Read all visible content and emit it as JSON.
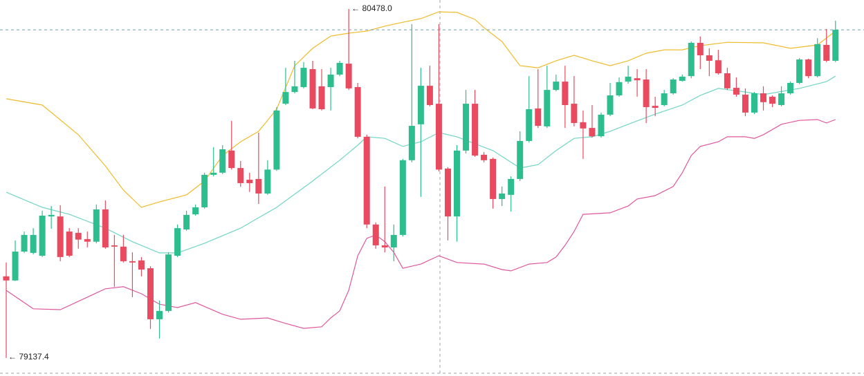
{
  "chart_data": {
    "type": "candlestick",
    "ylim": [
      79068,
      80512.5
    ],
    "up_color": "#2dbd8e",
    "down_color": "#e84a5f",
    "max_label": "← 80478.0",
    "min_label": "← 79137.4",
    "open": [
      79451,
      79435,
      79546,
      79541,
      79530,
      79681,
      79681,
      79623,
      79618,
      79594,
      79584,
      79708,
      79570,
      79565,
      79509,
      79512,
      79482,
      79286,
      79318,
      79530,
      79631,
      79689,
      79716,
      79841,
      79849,
      79934,
      79867,
      79822,
      79825,
      79769,
      79861,
      80114,
      80159,
      80178,
      80247,
      80181,
      80178,
      80226,
      80268,
      80178,
      79987,
      79650,
      79570,
      79562,
      79610,
      79897,
      80035,
      80183,
      80114,
      79865,
      79681,
      79934,
      80114,
      79918,
      79902,
      79748,
      79764,
      79825,
      79971,
      80096,
      80027,
      80167,
      80199,
      80114,
      80043,
      80021,
      79989,
      80072,
      80146,
      80199,
      80212,
      80207,
      80106,
      80109,
      80154,
      80202,
      80220,
      80348,
      80300,
      80281,
      80231,
      80175,
      80149,
      80080,
      80154,
      80141,
      80109,
      80154,
      80194,
      80284,
      80220,
      80340,
      80279
    ],
    "high": [
      79504,
      79589,
      79623,
      79636,
      79703,
      79721,
      79724,
      79636,
      79636,
      79623,
      79727,
      79743,
      79610,
      79610,
      79543,
      79525,
      79490,
      79358,
      79543,
      79650,
      79703,
      79727,
      79849,
      79947,
      79955,
      80048,
      79894,
      79849,
      80003,
      79897,
      80101,
      80252,
      80279,
      80274,
      80279,
      80247,
      80252,
      80279,
      80478.0,
      80194,
      79995,
      79658,
      79796,
      79650,
      79902,
      80420,
      80252,
      80260,
      80420,
      79870,
      79955,
      80167,
      80167,
      79928,
      79907,
      79796,
      79835,
      80008,
      80220,
      80247,
      80260,
      80226,
      80260,
      80220,
      80088,
      80109,
      80080,
      80194,
      80215,
      80260,
      80247,
      80247,
      80141,
      80167,
      80212,
      80226,
      80353,
      80372,
      80327,
      80321,
      80252,
      80215,
      80173,
      80159,
      80181,
      80146,
      80181,
      80199,
      80289,
      80287,
      80366,
      80401,
      80433
    ],
    "low": [
      79137.4,
      79433,
      79541,
      79535,
      79525,
      79634,
      79509,
      79525,
      79557,
      79562,
      79578,
      79557,
      79411,
      79504,
      79371,
      79451,
      79249,
      79212,
      79312,
      79525,
      79626,
      79684,
      79711,
      79835,
      79844,
      79861,
      79795,
      79775,
      79729,
      79764,
      79856,
      80109,
      80154,
      80173,
      80093,
      80088,
      80088,
      80220,
      80167,
      79981,
      79636,
      79557,
      79543,
      79509,
      79604,
      79889,
      79756,
      80104,
      79854,
      79589,
      79584,
      79923,
      79910,
      79889,
      79711,
      79721,
      79700,
      79817,
      79965,
      80021,
      80021,
      80162,
      80021,
      80027,
      79902,
      79984,
      79984,
      80066,
      80141,
      80191,
      80141,
      80040,
      80066,
      80104,
      80149,
      80199,
      80212,
      80247,
      80220,
      80226,
      80167,
      80141,
      80066,
      80074,
      80088,
      80101,
      80104,
      80149,
      80189,
      80212,
      80215,
      80274,
      80274
    ],
    "close": [
      79435,
      79546,
      79610,
      79610,
      79684,
      79687,
      79525,
      79530,
      79592,
      79584,
      79708,
      79562,
      79565,
      79509,
      79504,
      79477,
      79286,
      79318,
      79535,
      79636,
      79687,
      79716,
      79841,
      79849,
      79939,
      79867,
      79809,
      79809,
      79769,
      79861,
      80088,
      80159,
      80181,
      80252,
      80096,
      80093,
      80226,
      80271,
      80173,
      79987,
      79650,
      79570,
      79562,
      79610,
      79897,
      80029,
      80183,
      80109,
      79861,
      79681,
      79934,
      80114,
      79915,
      79897,
      79748,
      79769,
      79825,
      79971,
      80093,
      80029,
      80167,
      80199,
      80109,
      80040,
      80019,
      79989,
      80072,
      80146,
      80197,
      80218,
      80204,
      80101,
      80098,
      80154,
      80207,
      80218,
      80348,
      80300,
      80279,
      80231,
      80173,
      80149,
      80080,
      80154,
      80120,
      80114,
      80154,
      80194,
      80284,
      80220,
      80343,
      80279,
      80398
    ],
    "bands": [
      {
        "color": "#f0bb2a",
        "x": [
          0,
          4,
          8,
          11,
          13,
          15,
          17,
          20,
          22,
          24,
          26,
          28,
          30,
          32,
          34,
          36,
          38,
          40,
          42,
          44,
          46,
          48,
          50,
          52,
          53,
          55,
          57,
          59,
          61,
          63,
          65,
          67,
          69,
          71,
          73,
          75,
          77,
          80,
          84,
          87,
          90,
          92
        ],
        "values": [
          80133,
          80109,
          79995,
          79875,
          79782,
          79716,
          79737,
          79764,
          79817,
          79915,
          79968,
          80008,
          80093,
          80260,
          80327,
          80374,
          80385,
          80393,
          80412,
          80427,
          80441,
          80467,
          80465,
          80438,
          80406,
          80353,
          80260,
          80252,
          80279,
          80300,
          80279,
          80260,
          80279,
          80308,
          80321,
          80321,
          80337,
          80350,
          80348,
          80327,
          80340,
          80393
        ]
      },
      {
        "color": "#6fd6c4",
        "x": [
          0,
          4,
          7,
          11,
          14,
          17,
          19,
          22,
          26,
          30,
          34,
          37,
          39,
          40,
          42,
          44,
          46,
          48,
          50,
          52,
          54,
          56,
          57,
          59,
          61,
          63,
          65,
          67,
          69,
          72,
          75,
          77,
          79,
          82,
          84,
          88,
          91,
          92
        ],
        "values": [
          79774,
          79716,
          79689,
          79636,
          79584,
          79541,
          79541,
          79578,
          79636,
          79716,
          79817,
          79897,
          79955,
          79987,
          79981,
          79950,
          79968,
          80003,
          79987,
          79960,
          79934,
          79889,
          79867,
          79880,
          79934,
          79981,
          79987,
          80008,
          80035,
          80074,
          80109,
          80146,
          80173,
          80159,
          80149,
          80173,
          80199,
          80220
        ]
      },
      {
        "color": "#e0569c",
        "x": [
          0,
          3,
          6,
          9,
          11,
          13,
          15,
          17,
          19,
          21,
          24,
          26,
          29,
          31,
          33,
          35,
          36,
          37,
          38,
          39,
          40,
          41,
          42,
          43,
          44,
          46,
          48,
          50,
          53,
          55,
          56,
          58,
          60,
          61,
          62,
          63,
          64,
          67,
          69,
          70,
          72,
          74,
          75,
          76,
          77,
          79,
          80,
          82,
          83,
          84,
          86,
          88,
          90,
          91,
          92
        ],
        "values": [
          79397,
          79326,
          79323,
          79371,
          79403,
          79411,
          79384,
          79344,
          79331,
          79350,
          79305,
          79286,
          79291,
          79270,
          79251,
          79257,
          79291,
          79318,
          79397,
          79530,
          79597,
          79610,
          79584,
          79543,
          79482,
          79498,
          79530,
          79504,
          79498,
          79477,
          79472,
          79498,
          79504,
          79525,
          79570,
          79623,
          79689,
          79695,
          79721,
          79748,
          79761,
          79796,
          79849,
          79915,
          79950,
          79968,
          79987,
          79987,
          79981,
          79995,
          80035,
          80050,
          80053,
          80040,
          80053
        ]
      }
    ]
  }
}
